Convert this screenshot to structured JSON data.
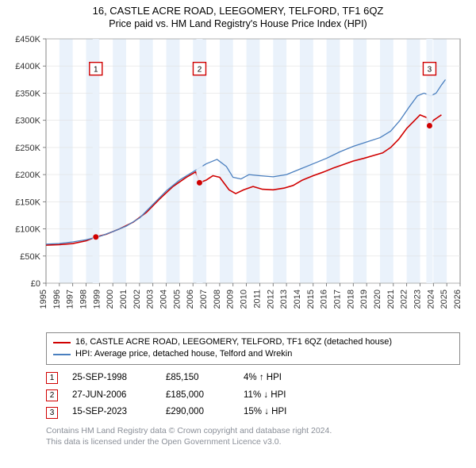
{
  "title": {
    "line1": "16, CASTLE ACRE ROAD, LEEGOMERY, TELFORD, TF1 6QZ",
    "line2": "Price paid vs. HM Land Registry's House Price Index (HPI)"
  },
  "chart": {
    "type": "line",
    "plot_background": "#ffffff",
    "band_color": "#eaf2fb",
    "grid_color": "#e0e0e0",
    "axis_color": "#666666",
    "x_years": [
      1995,
      1996,
      1997,
      1998,
      1999,
      2000,
      2001,
      2002,
      2003,
      2004,
      2005,
      2006,
      2007,
      2008,
      2009,
      2010,
      2011,
      2012,
      2013,
      2014,
      2015,
      2016,
      2017,
      2018,
      2019,
      2020,
      2021,
      2022,
      2023,
      2024,
      2025,
      2026
    ],
    "x_min": 1995,
    "x_max": 2026,
    "y_min": 0,
    "y_max": 450000,
    "y_ticks": [
      0,
      50000,
      100000,
      150000,
      200000,
      250000,
      300000,
      350000,
      400000,
      450000
    ],
    "y_tick_labels": [
      "£0",
      "£50K",
      "£100K",
      "£150K",
      "£200K",
      "£250K",
      "£300K",
      "£350K",
      "£400K",
      "£450K"
    ],
    "series": [
      {
        "name": "price_paid",
        "color": "#d00000",
        "width": 1.6,
        "points": [
          [
            1995.0,
            70000
          ],
          [
            1996.0,
            71000
          ],
          [
            1997.0,
            73000
          ],
          [
            1998.0,
            78000
          ],
          [
            1998.73,
            85150
          ],
          [
            1999.5,
            90000
          ],
          [
            2000.5,
            100000
          ],
          [
            2001.5,
            112000
          ],
          [
            2002.5,
            130000
          ],
          [
            2003.5,
            155000
          ],
          [
            2004.5,
            178000
          ],
          [
            2005.5,
            195000
          ],
          [
            2006.2,
            205000
          ],
          [
            2006.49,
            185000
          ],
          [
            2007.0,
            190000
          ],
          [
            2007.5,
            198000
          ],
          [
            2008.0,
            195000
          ],
          [
            2008.7,
            172000
          ],
          [
            2009.2,
            165000
          ],
          [
            2009.8,
            172000
          ],
          [
            2010.5,
            178000
          ],
          [
            2011.2,
            173000
          ],
          [
            2012.0,
            172000
          ],
          [
            2012.8,
            175000
          ],
          [
            2013.5,
            180000
          ],
          [
            2014.2,
            190000
          ],
          [
            2015.0,
            198000
          ],
          [
            2015.8,
            205000
          ],
          [
            2016.5,
            212000
          ],
          [
            2017.2,
            218000
          ],
          [
            2018.0,
            225000
          ],
          [
            2018.8,
            230000
          ],
          [
            2019.5,
            235000
          ],
          [
            2020.2,
            240000
          ],
          [
            2020.8,
            250000
          ],
          [
            2021.4,
            265000
          ],
          [
            2022.0,
            285000
          ],
          [
            2022.6,
            300000
          ],
          [
            2023.0,
            310000
          ],
          [
            2023.5,
            305000
          ],
          [
            2023.71,
            290000
          ],
          [
            2024.0,
            300000
          ],
          [
            2024.3,
            305000
          ],
          [
            2024.6,
            310000
          ]
        ]
      },
      {
        "name": "hpi",
        "color": "#4a7fbf",
        "width": 1.3,
        "points": [
          [
            1995.0,
            72000
          ],
          [
            1996.0,
            73000
          ],
          [
            1997.0,
            76000
          ],
          [
            1998.0,
            80000
          ],
          [
            1999.0,
            86000
          ],
          [
            2000.0,
            95000
          ],
          [
            2001.0,
            105000
          ],
          [
            2002.0,
            120000
          ],
          [
            2003.0,
            145000
          ],
          [
            2004.0,
            170000
          ],
          [
            2005.0,
            190000
          ],
          [
            2006.0,
            205000
          ],
          [
            2007.0,
            220000
          ],
          [
            2007.8,
            228000
          ],
          [
            2008.5,
            215000
          ],
          [
            2009.0,
            195000
          ],
          [
            2009.6,
            192000
          ],
          [
            2010.2,
            200000
          ],
          [
            2011.0,
            198000
          ],
          [
            2012.0,
            196000
          ],
          [
            2013.0,
            200000
          ],
          [
            2014.0,
            210000
          ],
          [
            2015.0,
            220000
          ],
          [
            2016.0,
            230000
          ],
          [
            2017.0,
            242000
          ],
          [
            2018.0,
            252000
          ],
          [
            2019.0,
            260000
          ],
          [
            2020.0,
            268000
          ],
          [
            2020.8,
            280000
          ],
          [
            2021.5,
            300000
          ],
          [
            2022.2,
            325000
          ],
          [
            2022.8,
            345000
          ],
          [
            2023.3,
            350000
          ],
          [
            2023.8,
            345000
          ],
          [
            2024.2,
            350000
          ],
          [
            2024.6,
            365000
          ],
          [
            2024.9,
            375000
          ]
        ]
      }
    ],
    "sale_markers": [
      {
        "n": "1",
        "x": 1998.73,
        "y": 85150,
        "label_y": 395000
      },
      {
        "n": "2",
        "x": 2006.49,
        "y": 185000,
        "label_y": 395000
      },
      {
        "n": "3",
        "x": 2023.71,
        "y": 290000,
        "label_y": 395000
      }
    ]
  },
  "legend": {
    "items": [
      {
        "color": "#d00000",
        "label": "16, CASTLE ACRE ROAD, LEEGOMERY, TELFORD, TF1 6QZ (detached house)"
      },
      {
        "color": "#4a7fbf",
        "label": "HPI: Average price, detached house, Telford and Wrekin"
      }
    ]
  },
  "sales": [
    {
      "n": "1",
      "date": "25-SEP-1998",
      "price": "£85,150",
      "diff": "4% ↑ HPI"
    },
    {
      "n": "2",
      "date": "27-JUN-2006",
      "price": "£185,000",
      "diff": "11% ↓ HPI"
    },
    {
      "n": "3",
      "date": "15-SEP-2023",
      "price": "£290,000",
      "diff": "15% ↓ HPI"
    }
  ],
  "footer": {
    "line1": "Contains HM Land Registry data © Crown copyright and database right 2024.",
    "line2": "This data is licensed under the Open Government Licence v3.0."
  }
}
